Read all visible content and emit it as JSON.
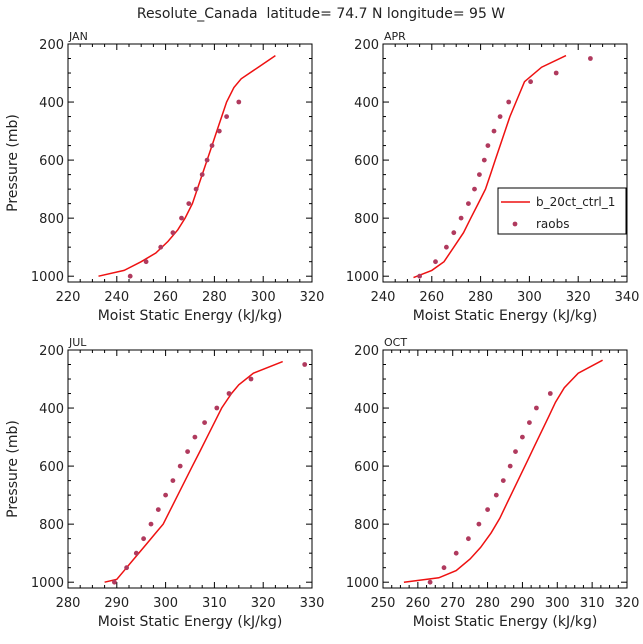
{
  "figure": {
    "title": "Resolute_Canada  latitude= 74.7 N longitude= 95 W"
  },
  "legend": {
    "entries": [
      {
        "label": "b_20ct_ctrl_1",
        "color": "#ee1111",
        "kind": "line"
      },
      {
        "label": "raobs",
        "color": "#b03a5e",
        "kind": "marker"
      }
    ],
    "panel": 1,
    "placement": "center-right"
  },
  "colors": {
    "model": "#ee1111",
    "obs": "#b03a5e",
    "axis": "#000000"
  },
  "chart_data": [
    {
      "type": "line",
      "label": "JAN",
      "xlabel": "Moist Static Energy (kJ/kg)",
      "ylabel": "Pressure (mb)",
      "xlim": [
        220,
        320
      ],
      "xticks": [
        220,
        240,
        260,
        280,
        300,
        320
      ],
      "ylim": [
        200,
        1020
      ],
      "yticks": [
        200,
        400,
        600,
        800,
        1000
      ],
      "y_inverted": true,
      "series": [
        {
          "key": "model",
          "kind": "line",
          "points": [
            [
              232.5,
              1000
            ],
            [
              243,
              980
            ],
            [
              250,
              950
            ],
            [
              256,
              920
            ],
            [
              261,
              880
            ],
            [
              265,
              840
            ],
            [
              268,
              800
            ],
            [
              271,
              750
            ],
            [
              273,
              700
            ],
            [
              275,
              650
            ],
            [
              277,
              600
            ],
            [
              279,
              550
            ],
            [
              281,
              500
            ],
            [
              283,
              450
            ],
            [
              285,
              400
            ],
            [
              288,
              350
            ],
            [
              291,
              320
            ],
            [
              298,
              280
            ],
            [
              305,
              240
            ]
          ]
        },
        {
          "key": "obs",
          "kind": "scatter",
          "points": [
            [
              245.5,
              1000
            ],
            [
              252,
              950
            ],
            [
              258,
              900
            ],
            [
              263,
              850
            ],
            [
              266.5,
              800
            ],
            [
              269.5,
              750
            ],
            [
              272.5,
              700
            ],
            [
              275,
              650
            ],
            [
              277,
              600
            ],
            [
              279,
              550
            ],
            [
              282,
              500
            ],
            [
              285,
              450
            ],
            [
              290,
              400
            ]
          ]
        }
      ]
    },
    {
      "type": "line",
      "label": "APR",
      "xlabel": "Moist Static Energy (kJ/kg)",
      "ylabel": "",
      "xlim": [
        240,
        340
      ],
      "xticks": [
        240,
        260,
        280,
        300,
        320,
        340
      ],
      "ylim": [
        200,
        1020
      ],
      "yticks": [
        200,
        400,
        600,
        800,
        1000
      ],
      "y_inverted": true,
      "series": [
        {
          "key": "model",
          "kind": "line",
          "points": [
            [
              252.5,
              1005
            ],
            [
              260,
              980
            ],
            [
              265,
              950
            ],
            [
              269,
              900
            ],
            [
              273,
              850
            ],
            [
              276,
              800
            ],
            [
              279,
              750
            ],
            [
              282,
              700
            ],
            [
              284,
              650
            ],
            [
              286,
              600
            ],
            [
              288,
              550
            ],
            [
              290,
              500
            ],
            [
              292,
              450
            ],
            [
              294.5,
              400
            ],
            [
              298,
              330
            ],
            [
              305,
              280
            ],
            [
              315,
              240
            ]
          ]
        },
        {
          "key": "obs",
          "kind": "scatter",
          "points": [
            [
              255,
              1000
            ],
            [
              261.5,
              950
            ],
            [
              266,
              900
            ],
            [
              269,
              850
            ],
            [
              272,
              800
            ],
            [
              275,
              750
            ],
            [
              277.5,
              700
            ],
            [
              279.5,
              650
            ],
            [
              281.5,
              600
            ],
            [
              283,
              550
            ],
            [
              285.5,
              500
            ],
            [
              288,
              450
            ],
            [
              291.5,
              400
            ],
            [
              300.5,
              330
            ],
            [
              311,
              300
            ],
            [
              325,
              250
            ]
          ]
        }
      ]
    },
    {
      "type": "line",
      "label": "JUL",
      "xlabel": "Moist Static Energy (kJ/kg)",
      "ylabel": "Pressure (mb)",
      "xlim": [
        280,
        330
      ],
      "xticks": [
        280,
        290,
        300,
        310,
        320,
        330
      ],
      "ylim": [
        200,
        1020
      ],
      "yticks": [
        200,
        400,
        600,
        800,
        1000
      ],
      "y_inverted": true,
      "series": [
        {
          "key": "model",
          "kind": "line",
          "points": [
            [
              287.5,
              1000
            ],
            [
              290,
              990
            ],
            [
              292,
              950
            ],
            [
              294,
              910
            ],
            [
              296,
              870
            ],
            [
              298,
              830
            ],
            [
              299.5,
              800
            ],
            [
              301,
              750
            ],
            [
              302.5,
              700
            ],
            [
              304,
              650
            ],
            [
              305.5,
              600
            ],
            [
              307,
              550
            ],
            [
              308.5,
              500
            ],
            [
              310,
              450
            ],
            [
              311.5,
              400
            ],
            [
              313.5,
              350
            ],
            [
              315,
              320
            ],
            [
              318,
              280
            ],
            [
              324,
              240
            ]
          ]
        },
        {
          "key": "obs",
          "kind": "scatter",
          "points": [
            [
              289.5,
              1000
            ],
            [
              292,
              950
            ],
            [
              294,
              900
            ],
            [
              295.5,
              850
            ],
            [
              297,
              800
            ],
            [
              298.5,
              750
            ],
            [
              300,
              700
            ],
            [
              301.5,
              650
            ],
            [
              303,
              600
            ],
            [
              304.5,
              550
            ],
            [
              306,
              500
            ],
            [
              308,
              450
            ],
            [
              310.5,
              400
            ],
            [
              313,
              350
            ],
            [
              317.5,
              300
            ],
            [
              328.5,
              250
            ]
          ]
        }
      ]
    },
    {
      "type": "line",
      "label": "OCT",
      "xlabel": "Moist Static Energy (kJ/kg)",
      "ylabel": "",
      "xlim": [
        250,
        320
      ],
      "xticks": [
        250,
        260,
        270,
        280,
        290,
        300,
        310,
        320
      ],
      "ylim": [
        200,
        1020
      ],
      "yticks": [
        200,
        400,
        600,
        800,
        1000
      ],
      "y_inverted": true,
      "series": [
        {
          "key": "model",
          "kind": "line",
          "points": [
            [
              256,
              1000
            ],
            [
              266,
              985
            ],
            [
              271,
              960
            ],
            [
              275,
              920
            ],
            [
              278,
              880
            ],
            [
              281,
              830
            ],
            [
              283.5,
              780
            ],
            [
              285.5,
              730
            ],
            [
              287.5,
              680
            ],
            [
              289.5,
              630
            ],
            [
              291.5,
              580
            ],
            [
              293.5,
              530
            ],
            [
              295.5,
              480
            ],
            [
              297.5,
              430
            ],
            [
              299.5,
              380
            ],
            [
              302,
              330
            ],
            [
              306,
              280
            ],
            [
              313,
              235
            ]
          ]
        },
        {
          "key": "obs",
          "kind": "scatter",
          "points": [
            [
              263.5,
              1000
            ],
            [
              267.5,
              950
            ],
            [
              271,
              900
            ],
            [
              274.5,
              850
            ],
            [
              277.5,
              800
            ],
            [
              280,
              750
            ],
            [
              282.5,
              700
            ],
            [
              284.5,
              650
            ],
            [
              286.5,
              600
            ],
            [
              288,
              550
            ],
            [
              290,
              500
            ],
            [
              292,
              450
            ],
            [
              294,
              400
            ],
            [
              298,
              350
            ]
          ]
        }
      ]
    }
  ]
}
